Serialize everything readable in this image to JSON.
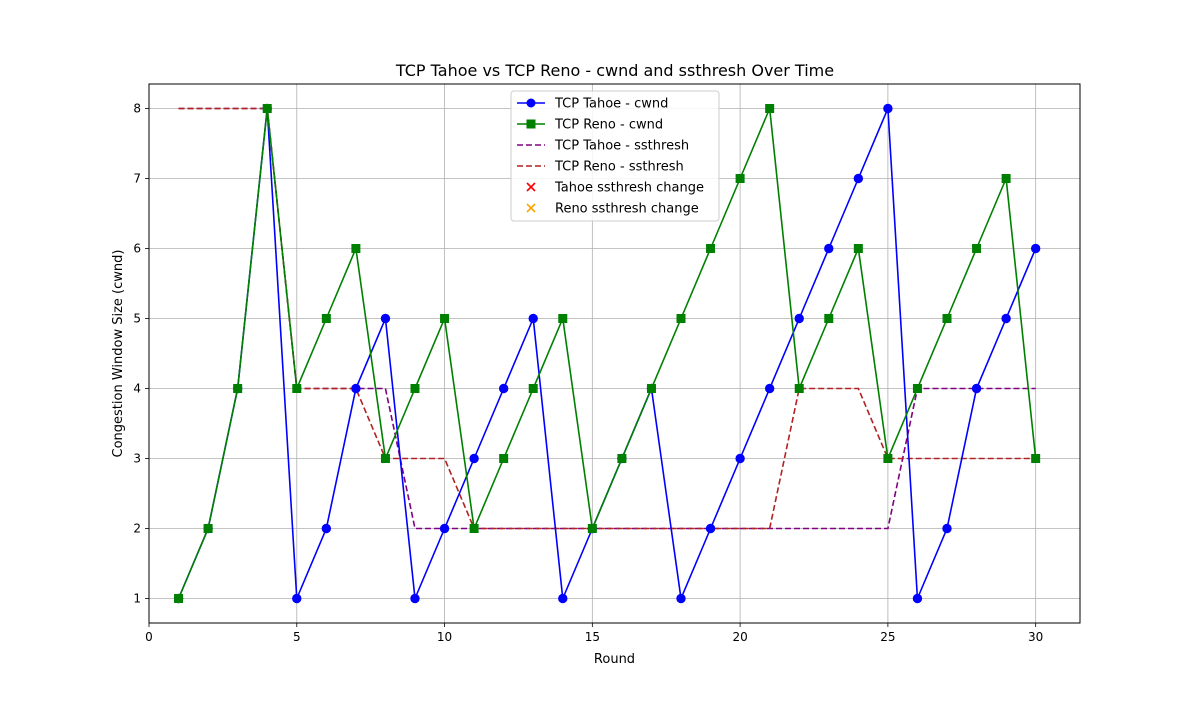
{
  "chart_data": {
    "type": "line",
    "title": "TCP Tahoe vs TCP Reno - cwnd and ssthresh Over Time",
    "xlabel": "Round",
    "ylabel": "Congestion Window Size (cwnd)",
    "xlim": [
      0,
      31.5
    ],
    "ylim": [
      0.65,
      8.35
    ],
    "xticks": [
      0,
      5,
      10,
      15,
      20,
      25,
      30
    ],
    "yticks": [
      1,
      2,
      3,
      4,
      5,
      6,
      7,
      8
    ],
    "grid": true,
    "legend_position": "top-center",
    "x": [
      1,
      2,
      3,
      4,
      5,
      6,
      7,
      8,
      9,
      10,
      11,
      12,
      13,
      14,
      15,
      16,
      17,
      18,
      19,
      20,
      21,
      22,
      23,
      24,
      25,
      26,
      27,
      28,
      29,
      30
    ],
    "series": [
      {
        "name": "TCP Tahoe - cwnd",
        "kind": "line-marker",
        "marker": "circle",
        "dash": "solid",
        "color": "#0000ff",
        "values": [
          1,
          2,
          4,
          8,
          1,
          2,
          4,
          5,
          1,
          2,
          3,
          4,
          5,
          1,
          2,
          3,
          4,
          1,
          2,
          3,
          4,
          5,
          6,
          7,
          8,
          1,
          2,
          4,
          5,
          6
        ]
      },
      {
        "name": "TCP Reno - cwnd",
        "kind": "line-marker",
        "marker": "square",
        "dash": "solid",
        "color": "#008000",
        "values": [
          1,
          2,
          4,
          8,
          4,
          5,
          6,
          3,
          4,
          5,
          2,
          3,
          4,
          5,
          2,
          3,
          4,
          5,
          6,
          7,
          8,
          4,
          5,
          6,
          3,
          4,
          5,
          6,
          7,
          3
        ]
      },
      {
        "name": "TCP Tahoe - ssthresh",
        "kind": "line",
        "marker": "none",
        "dash": "dashed",
        "color": "#800080",
        "values": [
          8,
          8,
          8,
          8,
          4,
          4,
          4,
          4,
          2,
          2,
          2,
          2,
          2,
          2,
          2,
          2,
          2,
          2,
          2,
          2,
          2,
          2,
          2,
          2,
          2,
          4,
          4,
          4,
          4,
          4
        ]
      },
      {
        "name": "TCP Reno - ssthresh",
        "kind": "line",
        "marker": "none",
        "dash": "dashed",
        "color": "#b22222",
        "values": [
          8,
          8,
          8,
          8,
          4,
          4,
          4,
          3,
          3,
          3,
          2,
          2,
          2,
          2,
          2,
          2,
          2,
          2,
          2,
          2,
          2,
          4,
          4,
          4,
          3,
          3,
          3,
          3,
          3,
          3
        ]
      }
    ],
    "scatter_series": [
      {
        "name": "Tahoe ssthresh change",
        "marker": "x",
        "color": "#ff0000",
        "points": [
          [
            4,
            8
          ],
          [
            8,
            5
          ],
          [
            13,
            5
          ],
          [
            17,
            4
          ],
          [
            25,
            8
          ]
        ]
      },
      {
        "name": "Reno ssthresh change",
        "marker": "x",
        "color": "#ffa500",
        "points": [
          [
            4,
            8
          ],
          [
            7,
            6
          ],
          [
            10,
            5
          ],
          [
            14,
            5
          ],
          [
            21,
            8
          ],
          [
            24,
            6
          ],
          [
            29,
            7
          ]
        ]
      }
    ]
  }
}
